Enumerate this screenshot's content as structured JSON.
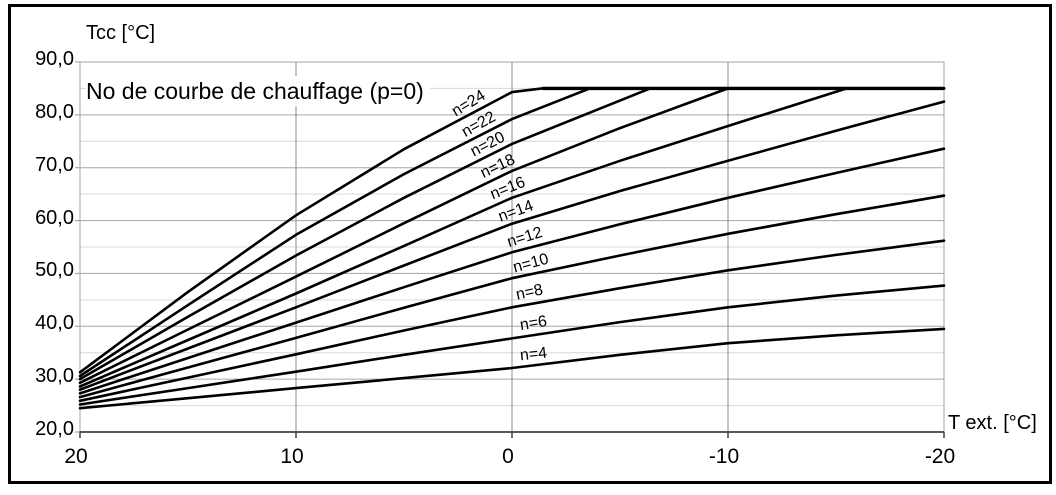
{
  "chart_data": {
    "type": "line",
    "title": "No de courbe de chauffage (p=0)",
    "x_axis": {
      "label": "T ext. [°C]",
      "ticks": [
        20,
        10,
        0,
        -10,
        -20
      ],
      "tick_labels": [
        "20",
        "10",
        "0",
        "-10",
        "-20"
      ],
      "range": [
        20,
        -20
      ],
      "reversed": true,
      "grid": true
    },
    "y_axis": {
      "label": "Tcc [°C]",
      "ticks": [
        20,
        30,
        40,
        50,
        60,
        70,
        80,
        90
      ],
      "tick_labels": [
        "20,0",
        "30,0",
        "40,0",
        "50,0",
        "60,0",
        "70,0",
        "80,0",
        "90,0"
      ],
      "range": [
        20,
        90
      ],
      "minor_step": 5,
      "grid": true
    },
    "max_flow_temperature": 85,
    "series": [
      {
        "label": "n=24",
        "n": 24,
        "label_at": 1.9,
        "label_angle": -31,
        "points": [
          [
            20,
            31.3
          ],
          [
            15,
            46.5
          ],
          [
            10,
            61.0
          ],
          [
            5,
            73.5
          ],
          [
            0,
            84.3
          ],
          [
            -1.4,
            85
          ],
          [
            -20,
            85
          ]
        ]
      },
      {
        "label": "n=22",
        "n": 22,
        "label_at": 1.45,
        "label_angle": -29,
        "points": [
          [
            20,
            30.6
          ],
          [
            15,
            44.0
          ],
          [
            10,
            57.3
          ],
          [
            5,
            68.8
          ],
          [
            0,
            79.2
          ],
          [
            -3.6,
            85
          ],
          [
            -20,
            85
          ]
        ]
      },
      {
        "label": "n=20",
        "n": 20,
        "label_at": 1.0,
        "label_angle": -27,
        "points": [
          [
            20,
            30.0
          ],
          [
            15,
            41.8
          ],
          [
            10,
            53.4
          ],
          [
            5,
            64.3
          ],
          [
            0,
            74.5
          ],
          [
            -6.4,
            85
          ],
          [
            -20,
            85
          ]
        ]
      },
      {
        "label": "n=18",
        "n": 18,
        "label_at": 0.55,
        "label_angle": -25,
        "points": [
          [
            20,
            29.3
          ],
          [
            15,
            39.4
          ],
          [
            10,
            49.4
          ],
          [
            5,
            59.5
          ],
          [
            0,
            69.4
          ],
          [
            -5,
            77.5
          ],
          [
            -10,
            85
          ],
          [
            -20,
            85
          ]
        ]
      },
      {
        "label": "n=16",
        "n": 16,
        "label_at": 0.1,
        "label_angle": -22,
        "points": [
          [
            20,
            28.6
          ],
          [
            15,
            37.4
          ],
          [
            10,
            46.2
          ],
          [
            5,
            55.2
          ],
          [
            0,
            64.3
          ],
          [
            -5,
            71.3
          ],
          [
            -10,
            77.9
          ],
          [
            -15.5,
            85
          ],
          [
            -20,
            85
          ]
        ]
      },
      {
        "label": "n=14",
        "n": 14,
        "label_at": -0.3,
        "label_angle": -20,
        "points": [
          [
            20,
            28.0
          ],
          [
            15,
            35.8
          ],
          [
            10,
            43.6
          ],
          [
            5,
            51.5
          ],
          [
            0,
            59.4
          ],
          [
            -5,
            65.6
          ],
          [
            -10,
            71.3
          ],
          [
            -15,
            77.0
          ],
          [
            -20,
            82.5
          ]
        ]
      },
      {
        "label": "n=12",
        "n": 12,
        "label_at": -0.7,
        "label_angle": -17,
        "points": [
          [
            20,
            27.3
          ],
          [
            15,
            34.0
          ],
          [
            10,
            40.7
          ],
          [
            5,
            47.4
          ],
          [
            0,
            54.0
          ],
          [
            -5,
            59.3
          ],
          [
            -10,
            64.3
          ],
          [
            -15,
            69.0
          ],
          [
            -20,
            73.6
          ]
        ]
      },
      {
        "label": "n=10",
        "n": 10,
        "label_at": -0.95,
        "label_angle": -15,
        "points": [
          [
            20,
            26.6
          ],
          [
            15,
            32.2
          ],
          [
            10,
            37.8
          ],
          [
            5,
            43.5
          ],
          [
            0,
            49.1
          ],
          [
            -5,
            53.4
          ],
          [
            -10,
            57.5
          ],
          [
            -15,
            61.2
          ],
          [
            -20,
            64.7
          ]
        ]
      },
      {
        "label": "n=8",
        "n": 8,
        "label_at": -1.1,
        "label_angle": -12,
        "points": [
          [
            20,
            25.9
          ],
          [
            15,
            30.3
          ],
          [
            10,
            34.7
          ],
          [
            5,
            39.2
          ],
          [
            0,
            43.6
          ],
          [
            -5,
            47.2
          ],
          [
            -10,
            50.6
          ],
          [
            -15,
            53.5
          ],
          [
            -20,
            56.2
          ]
        ]
      },
      {
        "label": "n=6",
        "n": 6,
        "label_at": -1.3,
        "label_angle": -9,
        "points": [
          [
            20,
            25.2
          ],
          [
            15,
            28.3
          ],
          [
            10,
            31.4
          ],
          [
            5,
            34.6
          ],
          [
            0,
            37.7
          ],
          [
            -5,
            40.8
          ],
          [
            -10,
            43.6
          ],
          [
            -15,
            45.8
          ],
          [
            -20,
            47.7
          ]
        ]
      },
      {
        "label": "n=4",
        "n": 4,
        "label_at": -1.3,
        "label_angle": -6,
        "points": [
          [
            20,
            24.5
          ],
          [
            15,
            26.4
          ],
          [
            10,
            28.3
          ],
          [
            5,
            30.2
          ],
          [
            0,
            32.1
          ],
          [
            -5,
            34.6
          ],
          [
            -10,
            36.8
          ],
          [
            -15,
            38.3
          ],
          [
            -20,
            39.5
          ]
        ]
      }
    ]
  },
  "colors": {
    "curve": "#000000",
    "frame": "#000000",
    "plot_border": "#a6a6a6",
    "grid_major": "#a6a6a6",
    "grid_minor": "#d9d9d9",
    "grid_vertical": "#8c8c8c",
    "axis_line": "#404040",
    "text": "#000000"
  }
}
